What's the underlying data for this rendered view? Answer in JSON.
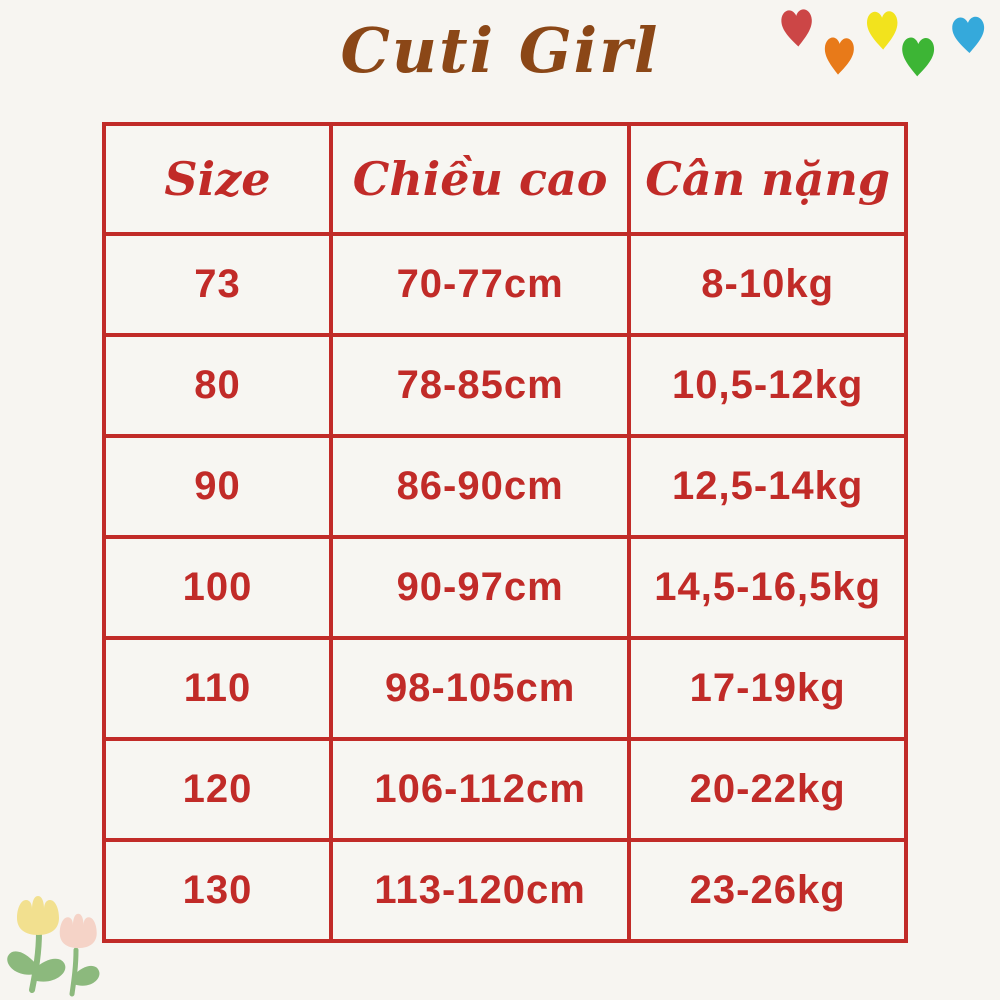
{
  "page": {
    "title": "Cuti Girl",
    "background_color": "#F7F5F1",
    "title_color": "#8B4717",
    "accent_red": "#C12B28"
  },
  "table": {
    "headers": [
      "Size",
      "Chiều cao",
      "Cân nặng"
    ],
    "rows": [
      [
        "73",
        "70-77cm",
        "8-10kg"
      ],
      [
        "80",
        "78-85cm",
        "10,5-12kg"
      ],
      [
        "90",
        "86-90cm",
        "12,5-14kg"
      ],
      [
        "100",
        "90-97cm",
        "14,5-16,5kg"
      ],
      [
        "110",
        "98-105cm",
        "17-19kg"
      ],
      [
        "120",
        "106-112cm",
        "20-22kg"
      ],
      [
        "130",
        "113-120cm",
        "23-26kg"
      ]
    ]
  },
  "decorations": {
    "hearts": [
      {
        "name": "red-heart-icon",
        "color": "#CC4646"
      },
      {
        "name": "orange-heart-icon",
        "color": "#E87A19"
      },
      {
        "name": "yellow-heart-icon",
        "color": "#F2E31D"
      },
      {
        "name": "green-heart-icon",
        "color": "#3DB535"
      },
      {
        "name": "blue-heart-icon",
        "color": "#35A9DB"
      }
    ],
    "tulips": {
      "yellow_flower": "#F2E08F",
      "pink_flower": "#F5D3C7",
      "stem": "#8CB97D"
    }
  }
}
